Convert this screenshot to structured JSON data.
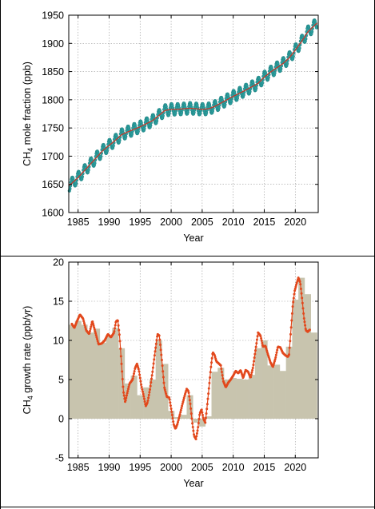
{
  "chart_data": [
    {
      "type": "line",
      "xlabel": "Year",
      "ylabel_main": "CH",
      "ylabel_sub": "4",
      "ylabel_rest": " mole fraction (ppb)",
      "xlim": [
        1983.5,
        2023.7
      ],
      "ylim": [
        1600,
        1950
      ],
      "xticks": [
        1985,
        1990,
        1995,
        2000,
        2005,
        2010,
        2015,
        2020
      ],
      "yticks": [
        1600,
        1650,
        1700,
        1750,
        1800,
        1850,
        1900,
        1950
      ],
      "grid": true,
      "series": [
        {
          "role": "monthly",
          "color": "#2a9d9d",
          "marker": "circle",
          "seasonal_amplitude": 10,
          "trend_points": [
            [
              1983.6,
              1648
            ],
            [
              1985,
              1662
            ],
            [
              1987,
              1686
            ],
            [
              1989,
              1710
            ],
            [
              1991,
              1728
            ],
            [
              1992,
              1738
            ],
            [
              1993,
              1743
            ],
            [
              1995,
              1752
            ],
            [
              1997,
              1763
            ],
            [
              1998,
              1772
            ],
            [
              1999,
              1781
            ],
            [
              2000,
              1783
            ],
            [
              2001,
              1783
            ],
            [
              2002,
              1784
            ],
            [
              2003,
              1785
            ],
            [
              2004,
              1784
            ],
            [
              2005,
              1783
            ],
            [
              2006,
              1784
            ],
            [
              2007,
              1788
            ],
            [
              2008,
              1794
            ],
            [
              2010,
              1806
            ],
            [
              2012,
              1817
            ],
            [
              2014,
              1829
            ],
            [
              2015,
              1840
            ],
            [
              2016,
              1849
            ],
            [
              2018,
              1864
            ],
            [
              2019,
              1874
            ],
            [
              2020,
              1888
            ],
            [
              2021,
              1903
            ],
            [
              2022,
              1920
            ],
            [
              2023.5,
              1936
            ]
          ]
        },
        {
          "role": "trend",
          "color": "#c0392b",
          "marker": "none",
          "same_as": "monthly.trend_points"
        }
      ]
    },
    {
      "type": "bar+line",
      "xlabel": "Year",
      "ylabel_main": "CH",
      "ylabel_sub": "4",
      "ylabel_rest": " growth rate (ppb/yr)",
      "xlim": [
        1983.5,
        2023.7
      ],
      "ylim": [
        -5,
        20
      ],
      "xticks": [
        1985,
        1990,
        1995,
        2000,
        2005,
        2010,
        2015,
        2020
      ],
      "yticks": [
        -5,
        0,
        5,
        10,
        15,
        20
      ],
      "grid": true,
      "bar_color": "#c8c4ae",
      "line_color": "#e2481c",
      "annual_bars": {
        "years": [
          1984,
          1985,
          1986,
          1987,
          1988,
          1989,
          1990,
          1991,
          1992,
          1993,
          1994,
          1995,
          1996,
          1997,
          1998,
          1999,
          2000,
          2001,
          2002,
          2003,
          2004,
          2005,
          2006,
          2007,
          2008,
          2009,
          2010,
          2011,
          2012,
          2013,
          2014,
          2015,
          2016,
          2017,
          2018,
          2019,
          2020,
          2021,
          2022,
          2023
        ],
        "values": [
          12.0,
          12.5,
          12.0,
          11.0,
          11.5,
          9.7,
          10.5,
          11.6,
          9.0,
          4.5,
          5.5,
          3.0,
          4.0,
          5.0,
          10.0,
          7.0,
          1.0,
          0.2,
          0.5,
          3.0,
          -0.5,
          -1.0,
          0.3,
          6.0,
          6.5,
          5.0,
          5.2,
          5.1,
          5.0,
          5.6,
          9.0,
          10.0,
          6.8,
          6.9,
          6.1,
          9.2,
          15.2,
          18.0,
          15.9,
          11.0
        ]
      },
      "monthly_rate_points": [
        [
          1984.0,
          12.1
        ],
        [
          1984.4,
          11.6
        ],
        [
          1984.8,
          12.4
        ],
        [
          1985.3,
          13.3
        ],
        [
          1985.8,
          12.8
        ],
        [
          1986.3,
          11.3
        ],
        [
          1986.8,
          10.8
        ],
        [
          1987.3,
          12.5
        ],
        [
          1987.8,
          11.0
        ],
        [
          1988.3,
          9.5
        ],
        [
          1988.8,
          9.6
        ],
        [
          1989.3,
          10.0
        ],
        [
          1989.8,
          10.8
        ],
        [
          1990.3,
          10.4
        ],
        [
          1990.8,
          11.0
        ],
        [
          1991.1,
          12.4
        ],
        [
          1991.4,
          12.6
        ],
        [
          1991.7,
          10.5
        ],
        [
          1992.0,
          7.0
        ],
        [
          1992.3,
          3.5
        ],
        [
          1992.6,
          2.1
        ],
        [
          1992.9,
          3.2
        ],
        [
          1993.3,
          4.5
        ],
        [
          1993.8,
          5.0
        ],
        [
          1994.2,
          6.5
        ],
        [
          1994.5,
          7.0
        ],
        [
          1994.8,
          6.2
        ],
        [
          1995.2,
          4.2
        ],
        [
          1995.6,
          2.8
        ],
        [
          1995.9,
          1.6
        ],
        [
          1996.2,
          2.1
        ],
        [
          1996.6,
          3.8
        ],
        [
          1997.0,
          6.0
        ],
        [
          1997.4,
          8.5
        ],
        [
          1997.8,
          10.8
        ],
        [
          1998.1,
          10.6
        ],
        [
          1998.5,
          7.5
        ],
        [
          1998.9,
          4.0
        ],
        [
          1999.3,
          2.8
        ],
        [
          1999.7,
          2.7
        ],
        [
          2000.1,
          0.8
        ],
        [
          2000.4,
          -0.7
        ],
        [
          2000.7,
          -1.3
        ],
        [
          2001.0,
          -0.7
        ],
        [
          2001.4,
          0.5
        ],
        [
          2001.8,
          1.8
        ],
        [
          2002.2,
          3.0
        ],
        [
          2002.5,
          3.8
        ],
        [
          2002.8,
          3.5
        ],
        [
          2003.1,
          1.8
        ],
        [
          2003.4,
          -0.5
        ],
        [
          2003.7,
          -2.2
        ],
        [
          2004.0,
          -2.6
        ],
        [
          2004.3,
          -1.3
        ],
        [
          2004.6,
          0.6
        ],
        [
          2004.9,
          1.2
        ],
        [
          2005.2,
          0.0
        ],
        [
          2005.5,
          -0.5
        ],
        [
          2005.8,
          1.6
        ],
        [
          2006.1,
          4.0
        ],
        [
          2006.4,
          6.5
        ],
        [
          2006.7,
          8.5
        ],
        [
          2007.0,
          8.1
        ],
        [
          2007.3,
          7.3
        ],
        [
          2007.6,
          7.1
        ],
        [
          2008.0,
          6.8
        ],
        [
          2008.4,
          4.8
        ],
        [
          2008.8,
          4.0
        ],
        [
          2009.2,
          4.6
        ],
        [
          2009.6,
          5.0
        ],
        [
          2010.0,
          5.5
        ],
        [
          2010.4,
          6.1
        ],
        [
          2010.8,
          5.8
        ],
        [
          2011.2,
          6.2
        ],
        [
          2011.6,
          5.2
        ],
        [
          2012.0,
          6.2
        ],
        [
          2012.4,
          6.0
        ],
        [
          2012.8,
          5.2
        ],
        [
          2013.2,
          6.6
        ],
        [
          2013.6,
          8.8
        ],
        [
          2014.0,
          11.0
        ],
        [
          2014.4,
          10.6
        ],
        [
          2014.8,
          9.2
        ],
        [
          2015.2,
          9.3
        ],
        [
          2015.6,
          8.2
        ],
        [
          2016.0,
          7.2
        ],
        [
          2016.4,
          6.6
        ],
        [
          2016.8,
          7.7
        ],
        [
          2017.2,
          9.2
        ],
        [
          2017.6,
          9.1
        ],
        [
          2018.0,
          8.4
        ],
        [
          2018.4,
          8.1
        ],
        [
          2018.8,
          7.9
        ],
        [
          2019.0,
          8.2
        ],
        [
          2019.3,
          11.3
        ],
        [
          2019.6,
          14.5
        ],
        [
          2019.9,
          16.3
        ],
        [
          2020.2,
          17.2
        ],
        [
          2020.5,
          18.0
        ],
        [
          2020.8,
          17.4
        ],
        [
          2021.1,
          15.3
        ],
        [
          2021.4,
          12.9
        ],
        [
          2021.7,
          11.3
        ],
        [
          2022.0,
          11.1
        ],
        [
          2022.4,
          11.4
        ]
      ]
    }
  ]
}
